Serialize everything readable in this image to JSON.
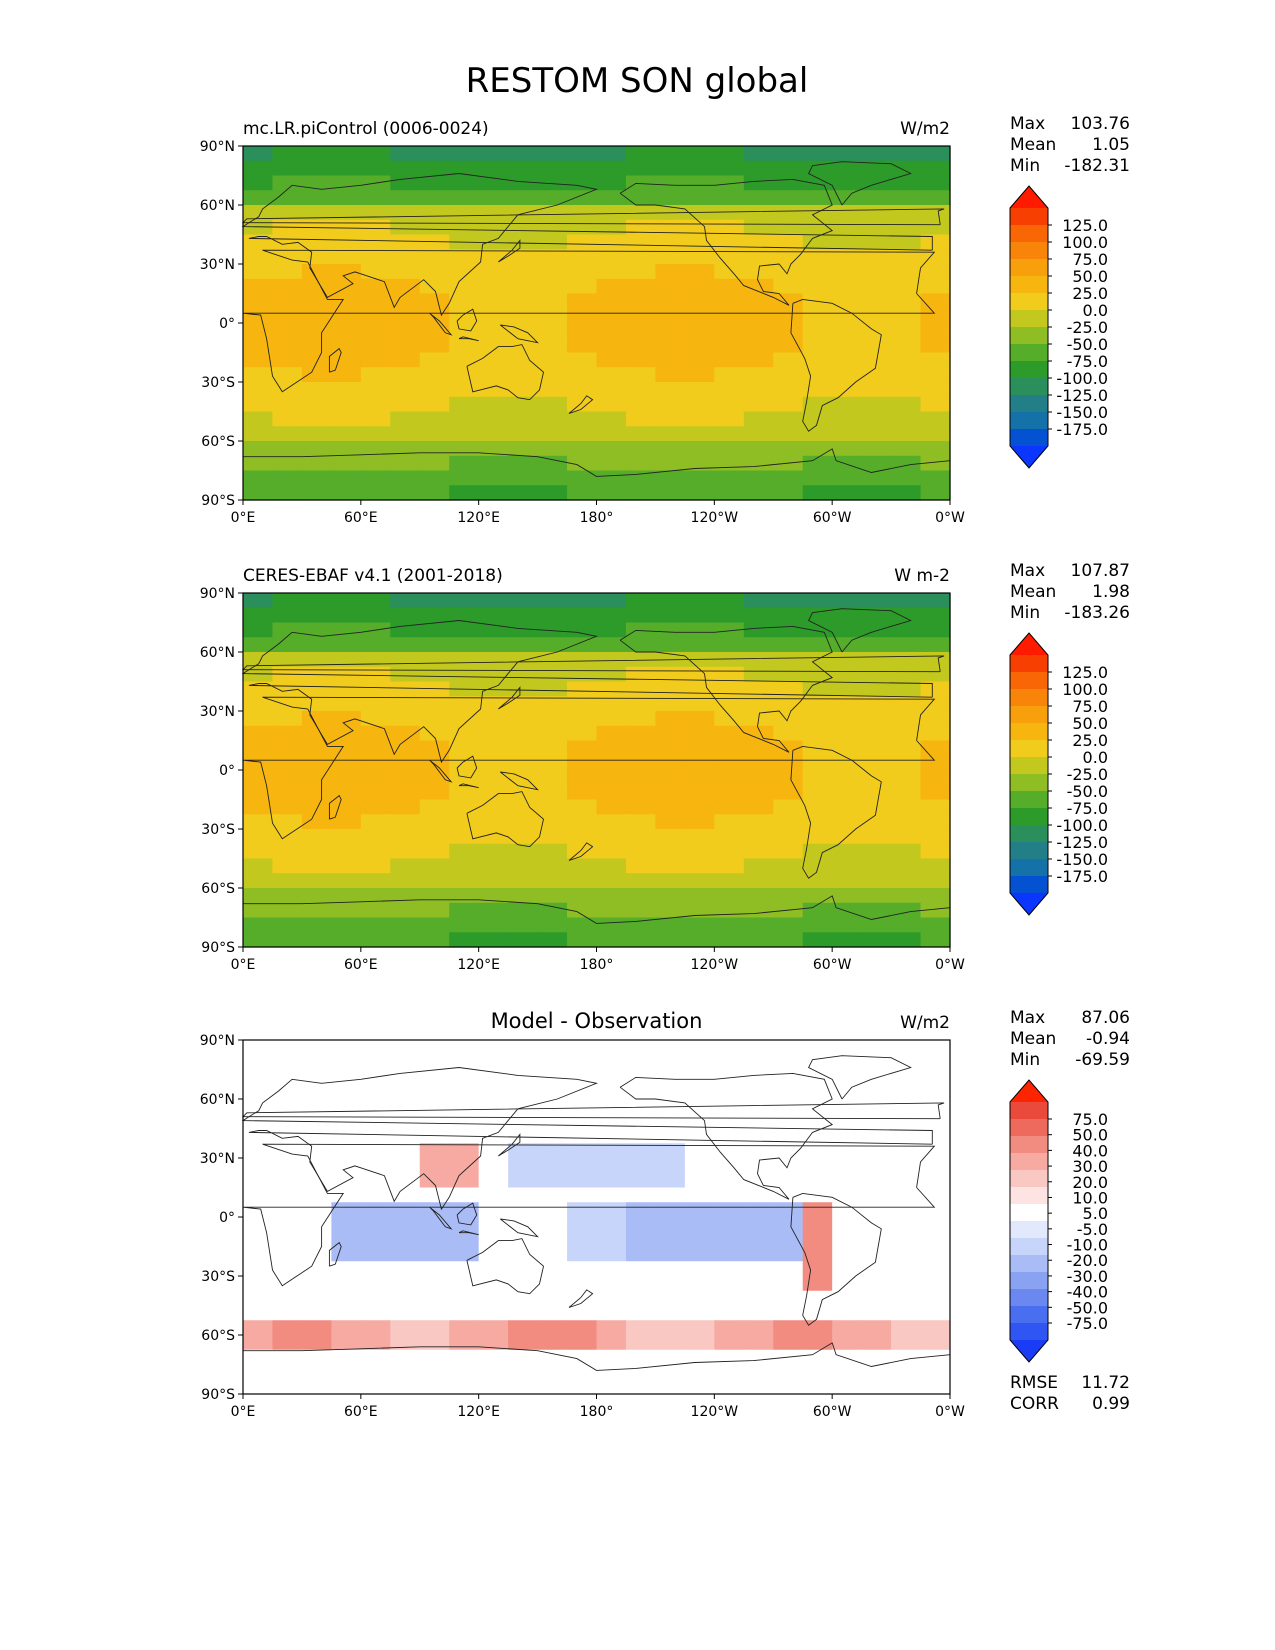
{
  "title": "RESTOM SON global",
  "colors": {
    "abs_levels": [
      "#0a36ff",
      "#0452d2",
      "#1572a8",
      "#227e87",
      "#2a8f5a",
      "#2d9b2a",
      "#55ad2a",
      "#8ebe24",
      "#c3c81e",
      "#f2cc1c",
      "#f7b50f",
      "#f8a00c",
      "#f8850a",
      "#f86606",
      "#f73f02",
      "#ff1a00"
    ],
    "diff_levels": [
      "#1a3cf5",
      "#2f55f2",
      "#4a6ef0",
      "#6a88ef",
      "#8aa2f2",
      "#a9bcf6",
      "#c8d5fa",
      "#e2e9fd",
      "#ffffff",
      "#fde4e2",
      "#f9c8c3",
      "#f6aaa2",
      "#f28b80",
      "#ee6a5d",
      "#ea4a3b",
      "#ff2400"
    ]
  },
  "panels": [
    {
      "left_title": "mc.LR.piControl (0006-0024)",
      "center_title": "",
      "units": "W/m2",
      "stats": [
        {
          "label": "Max",
          "value": "103.76"
        },
        {
          "label": "Mean",
          "value": "1.05"
        },
        {
          "label": "Min",
          "value": "-182.31"
        }
      ],
      "extra_stats": [],
      "colorbar_ticks": [
        "125.0",
        "100.0",
        "75.0",
        "50.0",
        "25.0",
        "0.0",
        "-25.0",
        "-50.0",
        "-75.0",
        "-100.0",
        "-125.0",
        "-150.0",
        "-175.0"
      ],
      "colorbar_palette": "abs"
    },
    {
      "left_title": "CERES-EBAF v4.1 (2001-2018)",
      "center_title": "",
      "units": "W m-2",
      "stats": [
        {
          "label": "Max",
          "value": "107.87"
        },
        {
          "label": "Mean",
          "value": "1.98"
        },
        {
          "label": "Min",
          "value": "-183.26"
        }
      ],
      "extra_stats": [],
      "colorbar_ticks": [
        "125.0",
        "100.0",
        "75.0",
        "50.0",
        "25.0",
        "0.0",
        "-25.0",
        "-50.0",
        "-75.0",
        "-100.0",
        "-125.0",
        "-150.0",
        "-175.0"
      ],
      "colorbar_palette": "abs"
    },
    {
      "left_title": "",
      "center_title": "Model - Observation",
      "units": "W/m2",
      "stats": [
        {
          "label": "Max",
          "value": "87.06"
        },
        {
          "label": "Mean",
          "value": "-0.94"
        },
        {
          "label": "Min",
          "value": "-69.59"
        }
      ],
      "extra_stats": [
        {
          "label": "RMSE",
          "value": "11.72"
        },
        {
          "label": "CORR",
          "value": "0.99"
        }
      ],
      "colorbar_ticks": [
        "75.0",
        "50.0",
        "40.0",
        "30.0",
        "20.0",
        "10.0",
        "5.0",
        "-5.0",
        "-10.0",
        "-20.0",
        "-30.0",
        "-40.0",
        "-50.0",
        "-75.0"
      ],
      "colorbar_palette": "diff"
    }
  ],
  "lat_ticks": [
    "90°N",
    "60°N",
    "30°N",
    "0°",
    "30°S",
    "60°S",
    "90°S"
  ],
  "lon_ticks": [
    "0°E",
    "60°E",
    "120°E",
    "180°",
    "120°W",
    "60°W",
    "0°W"
  ]
}
